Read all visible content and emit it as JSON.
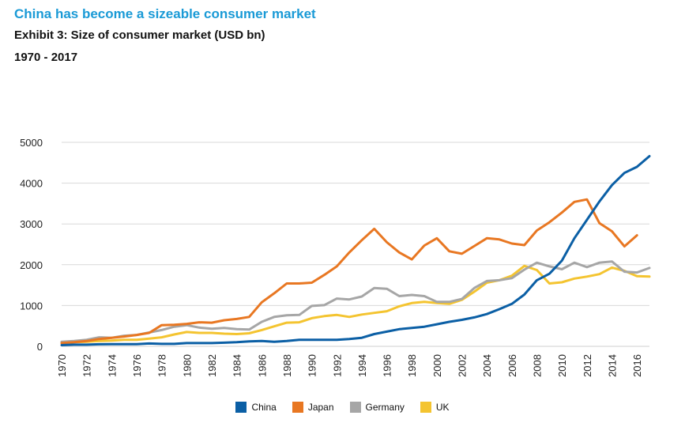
{
  "header": {
    "title": "China has become a sizeable consumer market",
    "subtitle": "Exhibit 3: Size of consumer market (USD bn)",
    "period": "1970 - 2017"
  },
  "chart_data": {
    "type": "line",
    "title": "Size of consumer market (USD bn)",
    "xlabel": "",
    "ylabel": "",
    "ylim": [
      0,
      5000
    ],
    "yticks": [
      0,
      1000,
      2000,
      3000,
      4000,
      5000
    ],
    "xticks": [
      1970,
      1972,
      1974,
      1976,
      1978,
      1980,
      1982,
      1984,
      1986,
      1988,
      1990,
      1992,
      1994,
      1996,
      1998,
      2000,
      2002,
      2004,
      2006,
      2008,
      2010,
      2012,
      2014,
      2016
    ],
    "legend_position": "bottom",
    "x": [
      1970,
      1971,
      1972,
      1973,
      1974,
      1975,
      1976,
      1977,
      1978,
      1979,
      1980,
      1981,
      1982,
      1983,
      1984,
      1985,
      1986,
      1987,
      1988,
      1989,
      1990,
      1991,
      1992,
      1993,
      1994,
      1995,
      1996,
      1997,
      1998,
      1999,
      2000,
      2001,
      2002,
      2003,
      2004,
      2005,
      2006,
      2007,
      2008,
      2009,
      2010,
      2011,
      2012,
      2013,
      2014,
      2015,
      2016,
      2017
    ],
    "series": [
      {
        "name": "China",
        "color": "#0b5fa5",
        "values": [
          30,
          40,
          40,
          50,
          55,
          55,
          55,
          70,
          60,
          60,
          80,
          80,
          80,
          90,
          100,
          120,
          130,
          110,
          130,
          160,
          160,
          160,
          160,
          180,
          210,
          300,
          360,
          420,
          450,
          480,
          540,
          600,
          650,
          710,
          790,
          910,
          1040,
          1270,
          1620,
          1780,
          2100,
          2650,
          3100,
          3550,
          3950,
          4250,
          4400,
          4660
        ]
      },
      {
        "name": "Japan",
        "color": "#e87722",
        "values": [
          80,
          100,
          130,
          180,
          210,
          240,
          280,
          330,
          520,
          530,
          550,
          590,
          580,
          640,
          670,
          720,
          1080,
          1300,
          1540,
          1540,
          1560,
          1750,
          1960,
          2300,
          2600,
          2880,
          2550,
          2300,
          2130,
          2470,
          2650,
          2330,
          2270,
          2460,
          2650,
          2620,
          2520,
          2480,
          2840,
          3040,
          3280,
          3540,
          3600,
          3020,
          2820,
          2450,
          2720,
          null
        ]
      },
      {
        "name": "Germany",
        "color": "#a6a6a6",
        "values": [
          110,
          130,
          160,
          220,
          210,
          260,
          280,
          340,
          400,
          480,
          520,
          460,
          430,
          450,
          420,
          410,
          600,
          720,
          760,
          770,
          990,
          1010,
          1170,
          1150,
          1220,
          1430,
          1410,
          1230,
          1260,
          1230,
          1090,
          1090,
          1160,
          1430,
          1600,
          1620,
          1670,
          1880,
          2050,
          1960,
          1890,
          2050,
          1940,
          2050,
          2080,
          1830,
          1810,
          1920
        ]
      },
      {
        "name": "UK",
        "color": "#f4c430",
        "values": [
          80,
          100,
          110,
          130,
          140,
          160,
          160,
          190,
          220,
          290,
          350,
          330,
          330,
          310,
          300,
          320,
          400,
          490,
          580,
          590,
          690,
          740,
          770,
          720,
          780,
          820,
          860,
          980,
          1060,
          1090,
          1060,
          1040,
          1140,
          1340,
          1560,
          1620,
          1730,
          1970,
          1870,
          1540,
          1570,
          1660,
          1710,
          1770,
          1930,
          1850,
          1720,
          1710
        ]
      }
    ]
  }
}
